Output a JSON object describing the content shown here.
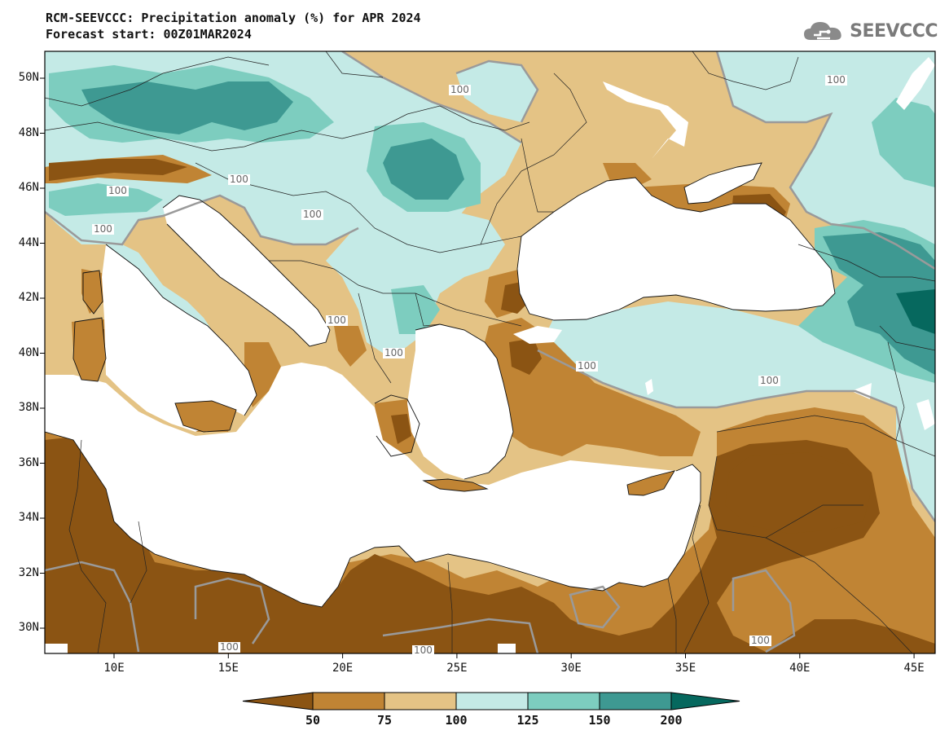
{
  "title_line1": "RCM-SEEVCCC: Precipitation anomaly (%) for APR 2024",
  "title_line2": "Forecast start: 00Z01MAR2024",
  "logo_text": "SEEVCCC",
  "logo_icon": "cloud-icon",
  "y_axis_labels": [
    "50N",
    "48N",
    "46N",
    "44N",
    "42N",
    "40N",
    "38N",
    "36N",
    "34N",
    "32N",
    "30N"
  ],
  "x_axis_labels": [
    "10E",
    "15E",
    "20E",
    "25E",
    "30E",
    "35E",
    "40E",
    "45E"
  ],
  "contour_labels": [
    "100",
    "100",
    "100",
    "100",
    "100",
    "100",
    "100",
    "100",
    "100",
    "100",
    "100",
    "100"
  ],
  "colorbar": {
    "ticks": [
      "50",
      "75",
      "100",
      "125",
      "150",
      "200"
    ],
    "colors": [
      "#8b5413",
      "#c08434",
      "#e4c385",
      "#c4eae6",
      "#7dcdbf",
      "#3e9992",
      "#06685e"
    ]
  },
  "palette": {
    "sea": "#ffffff",
    "lt50": "#8b5413",
    "r50_75": "#c08434",
    "r75_100": "#e4c385",
    "r100_125": "#c4eae6",
    "r125_150": "#7dcdbf",
    "r150_200": "#3e9992",
    "gt200": "#06685e"
  }
}
